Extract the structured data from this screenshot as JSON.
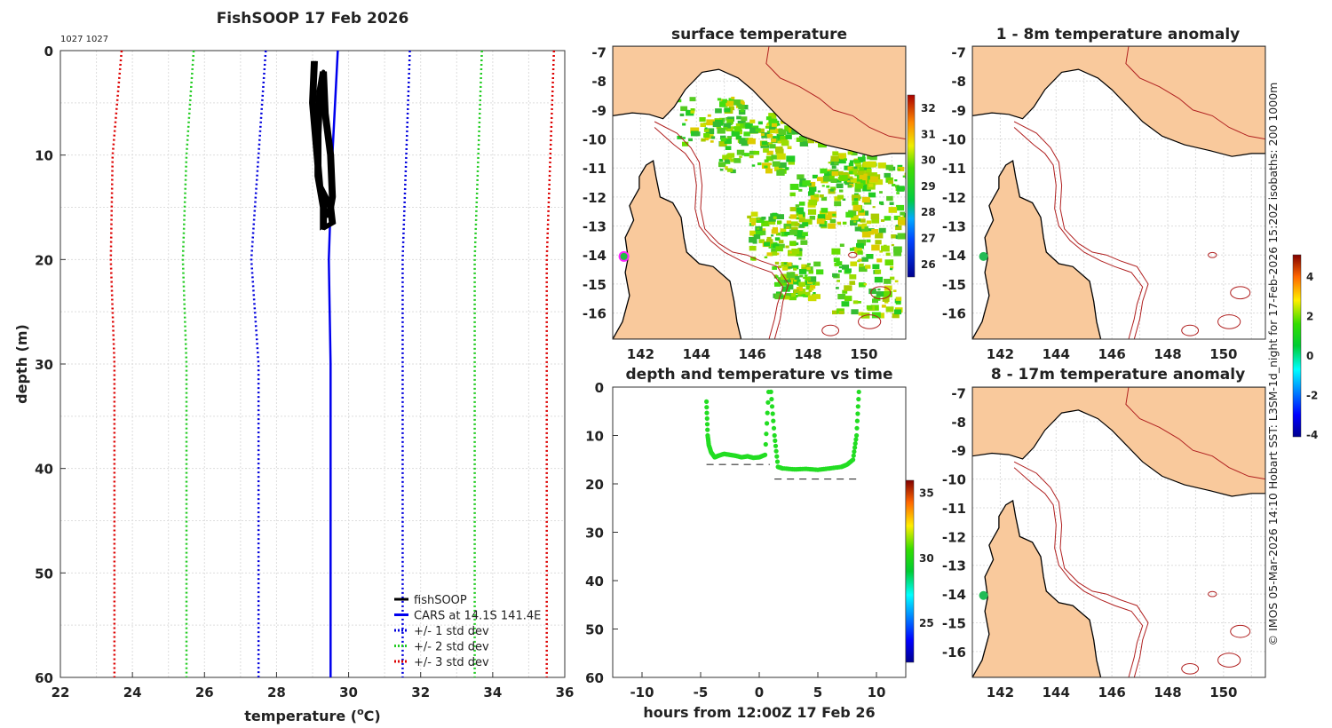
{
  "colors": {
    "land": "#f9c99c",
    "cars": "#0000ee",
    "std1": "#0000dd",
    "std2": "#22cc22",
    "std3": "#dd0000",
    "fish": "#000000",
    "track": "#22dd22",
    "isobath": "#b02020",
    "coast": "#000000"
  },
  "profile": {
    "title": "FishSOOP 17 Feb 2026",
    "ids": "1027 1027",
    "xlabel": "temperature",
    "xlabel_unit": "C",
    "ylabel": "depth (m)",
    "xticks": [
      "22",
      "24",
      "26",
      "28",
      "30",
      "32",
      "34",
      "36"
    ],
    "yticks": [
      "0",
      "10",
      "20",
      "30",
      "40",
      "50",
      "60"
    ],
    "legend": [
      "fishSOOP",
      "CARS at 14.1S 141.4E",
      "+/- 1 std dev",
      "+/- 2 std dev",
      "+/- 3 std dev"
    ]
  },
  "chart_data": [
    {
      "type": "line",
      "title": "FishSOOP 17 Feb 2026",
      "xlabel": "temperature (oC)",
      "ylabel": "depth (m)",
      "xlim": [
        22,
        36
      ],
      "ylim": [
        60,
        0
      ],
      "series": [
        {
          "name": "CARS at 14.1S 141.4E",
          "points": [
            [
              29.7,
              0
            ],
            [
              29.55,
              10
            ],
            [
              29.45,
              20
            ],
            [
              29.5,
              30
            ],
            [
              29.5,
              40
            ],
            [
              29.5,
              50
            ],
            [
              29.5,
              60
            ]
          ]
        },
        {
          "name": "+/- 1 std dev low",
          "points": [
            [
              27.7,
              0
            ],
            [
              27.5,
              10
            ],
            [
              27.3,
              20
            ],
            [
              27.5,
              30
            ],
            [
              27.5,
              40
            ],
            [
              27.5,
              50
            ],
            [
              27.5,
              60
            ]
          ]
        },
        {
          "name": "+/- 1 std dev high",
          "points": [
            [
              31.7,
              0
            ],
            [
              31.6,
              10
            ],
            [
              31.5,
              20
            ],
            [
              31.5,
              30
            ],
            [
              31.5,
              40
            ],
            [
              31.5,
              50
            ],
            [
              31.5,
              60
            ]
          ]
        },
        {
          "name": "+/- 2 std dev low",
          "points": [
            [
              25.7,
              0
            ],
            [
              25.5,
              10
            ],
            [
              25.4,
              20
            ],
            [
              25.5,
              30
            ],
            [
              25.5,
              40
            ],
            [
              25.5,
              50
            ],
            [
              25.5,
              60
            ]
          ]
        },
        {
          "name": "+/- 2 std dev high",
          "points": [
            [
              33.7,
              0
            ],
            [
              33.6,
              10
            ],
            [
              33.5,
              20
            ],
            [
              33.5,
              30
            ],
            [
              33.5,
              40
            ],
            [
              33.5,
              50
            ],
            [
              33.5,
              60
            ]
          ]
        },
        {
          "name": "+/- 3 std dev low",
          "points": [
            [
              23.7,
              0
            ],
            [
              23.45,
              10
            ],
            [
              23.4,
              20
            ],
            [
              23.5,
              30
            ],
            [
              23.5,
              40
            ],
            [
              23.5,
              50
            ],
            [
              23.5,
              60
            ]
          ]
        },
        {
          "name": "+/- 3 std dev high",
          "points": [
            [
              35.7,
              0
            ],
            [
              35.6,
              10
            ],
            [
              35.5,
              20
            ],
            [
              35.5,
              30
            ],
            [
              35.5,
              40
            ],
            [
              35.5,
              50
            ],
            [
              35.5,
              60
            ]
          ]
        },
        {
          "name": "fishSOOP",
          "points": [
            [
              29.05,
              1
            ],
            [
              29.0,
              5
            ],
            [
              29.1,
              9
            ],
            [
              29.2,
              13
            ],
            [
              29.5,
              15
            ],
            [
              29.55,
              16.5
            ],
            [
              29.3,
              17
            ],
            [
              29.3,
              15
            ],
            [
              29.15,
              12
            ],
            [
              29.15,
              8
            ],
            [
              29.2,
              4
            ],
            [
              29.3,
              2
            ],
            [
              29.35,
              6
            ],
            [
              29.5,
              10
            ],
            [
              29.55,
              14
            ],
            [
              29.45,
              16
            ]
          ]
        }
      ]
    },
    {
      "type": "scatter",
      "title": "depth and temperature vs time",
      "xlabel": "hours from 12:00Z 17 Feb 26",
      "ylabel": "",
      "xlim": [
        -12.5,
        12.5
      ],
      "ylim": [
        60,
        0
      ],
      "colorbar": {
        "min": 22,
        "max": 36,
        "ticks": [
          "25",
          "30",
          "35"
        ]
      },
      "segments": [
        {
          "x": [
            -4.5,
            -4.4,
            -4.3,
            -4.1,
            -3.8,
            -3.5,
            -3.0,
            -2.5,
            -2.0,
            -1.5,
            -1.0,
            -0.5,
            0.0,
            0.5,
            0.8
          ],
          "depth": [
            3,
            10,
            12,
            13.5,
            14.5,
            14.2,
            13.8,
            14.0,
            14.2,
            14.5,
            14.3,
            14.6,
            14.5,
            14.0,
            1
          ]
        },
        {
          "x": [
            1.0,
            1.3,
            1.6,
            2.0,
            3.0,
            4.0,
            5.0,
            6.0,
            7.0,
            7.5,
            8.0,
            8.3,
            8.5
          ],
          "depth": [
            1,
            10,
            16.5,
            16.8,
            17.0,
            16.9,
            17.1,
            16.8,
            16.5,
            16.0,
            15.0,
            10,
            1
          ]
        }
      ],
      "bottom_depth": [
        {
          "x": [
            -4.5,
            0.9
          ],
          "depth": 16
        },
        {
          "x": [
            1.3,
            8.5
          ],
          "depth": 19
        }
      ]
    }
  ],
  "maps": {
    "surface": {
      "title": "surface temperature",
      "cb_ticks": [
        "32",
        "31",
        "30",
        "29",
        "28",
        "27",
        "26"
      ]
    },
    "anom1": {
      "title": "1 - 8m temperature anomaly"
    },
    "anom2": {
      "title": "8 - 17m temperature anomaly"
    },
    "lat_ticks": [
      "-7",
      "-8",
      "-9",
      "-10",
      "-11",
      "-12",
      "-13",
      "-14",
      "-15",
      "-16"
    ],
    "lon_ticks": [
      "142",
      "144",
      "146",
      "148",
      "150"
    ],
    "anom_cb_ticks": [
      "4",
      "2",
      "0",
      "-2",
      "-4"
    ]
  },
  "timeplot": {
    "title": "depth and temperature vs time",
    "xlabel": "hours from 12:00Z 17 Feb 26",
    "xticks": [
      "-10",
      "-5",
      "0",
      "5",
      "10"
    ],
    "yticks": [
      "0",
      "10",
      "20",
      "30",
      "40",
      "50",
      "60"
    ],
    "cb_ticks": [
      "35",
      "30",
      "25"
    ]
  },
  "credit": "© IMOS 05-Mar-2026 14:10 Hobart SST: L3SM-1d_night for 17-Feb-2026 15:20Z isobaths: 200  1000m"
}
